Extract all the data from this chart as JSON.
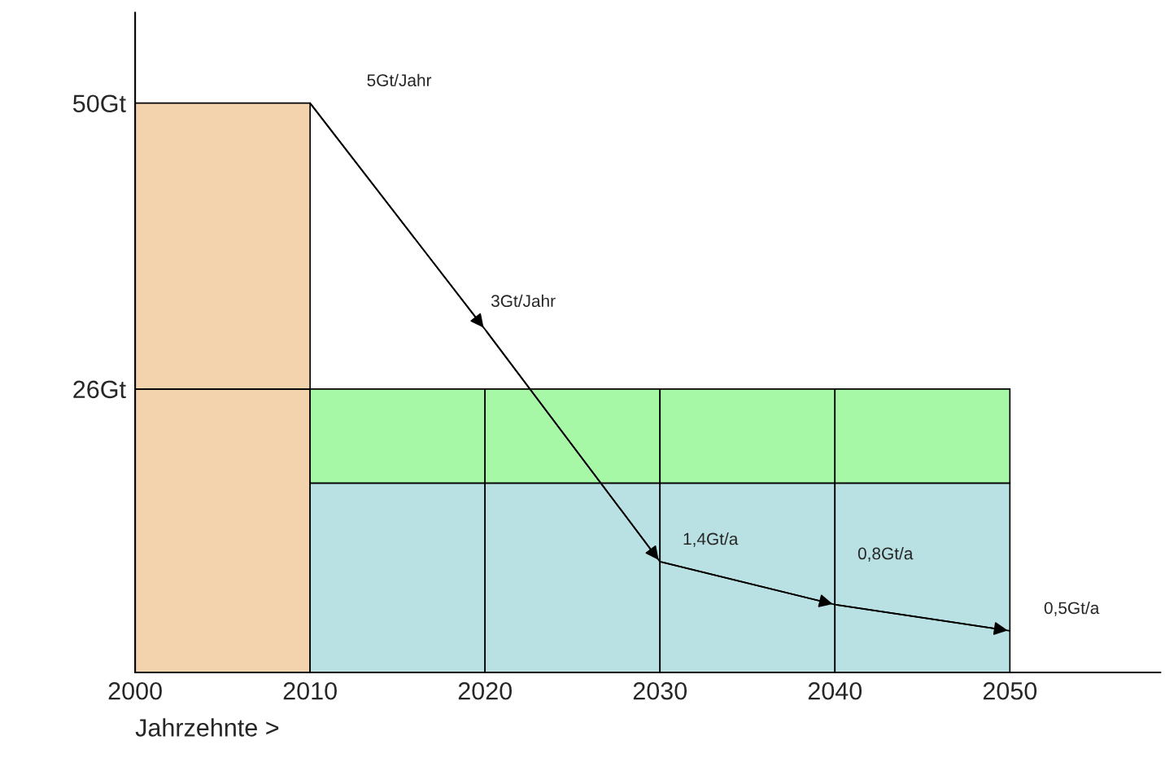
{
  "chart_data": {
    "type": "bar",
    "stacked": true,
    "xlabel": "Jahrzehnte >",
    "x": [
      2005,
      2015,
      2025,
      2035,
      2045
    ],
    "series": [
      {
        "color": "#f2d3ad",
        "values": [
          26,
          null,
          null,
          null,
          null
        ]
      },
      {
        "color": "#f2d3ad",
        "values": [
          24,
          null,
          null,
          null,
          null
        ]
      },
      {
        "color": "#b9e0e2",
        "values": [
          null,
          18.1,
          18.1,
          18.1,
          18.1
        ]
      },
      {
        "color": "#a6f7a6",
        "values": [
          null,
          7.9,
          7.9,
          7.9,
          7.9
        ]
      },
      {
        "type": "line",
        "color": "#000000",
        "x": [
          2010,
          2020,
          2030,
          2040,
          2050
        ],
        "values": [
          50,
          31.0,
          11.5,
          7.9,
          5.7
        ]
      }
    ],
    "xlim": [
      2000,
      2058.6
    ],
    "ylim": [
      2.2,
      57.6
    ],
    "xticks": [
      2000,
      2010,
      2020,
      2030,
      2040,
      2050
    ],
    "yticks": [
      {
        "value": 26,
        "label": "26Gt"
      },
      {
        "value": 50,
        "label": "50Gt"
      }
    ],
    "grid": false,
    "legend": false,
    "annotations": [
      "5Gt/Jahr",
      "3Gt/Jahr",
      "1,4Gt/a",
      "0,8Gt/a",
      "0,5Gt/a"
    ]
  }
}
